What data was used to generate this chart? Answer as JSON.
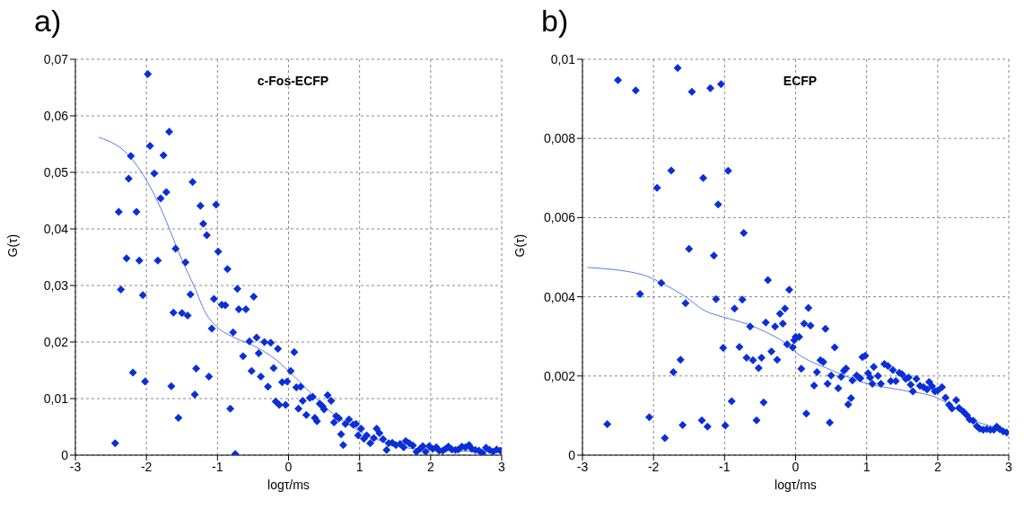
{
  "chart_data": [
    {
      "type": "scatter",
      "title": "a)",
      "annotations": [
        "c-Fos-ECFP"
      ],
      "xlabel": "logτ/ms",
      "ylabel": "G(τ)",
      "xlim": [
        -3,
        3
      ],
      "ylim": [
        0,
        0.07
      ],
      "xticks": [
        -3,
        -2,
        -1,
        0,
        1,
        2,
        3
      ],
      "yticks": [
        {
          "value": 0,
          "label": "0"
        },
        {
          "value": 0.01,
          "label": "0,01"
        },
        {
          "value": 0.02,
          "label": "0,02"
        },
        {
          "value": 0.03,
          "label": "0,03"
        },
        {
          "value": 0.04,
          "label": "0,04"
        },
        {
          "value": 0.05,
          "label": "0,05"
        },
        {
          "value": 0.06,
          "label": "0,06"
        },
        {
          "value": 0.07,
          "label": "0,07"
        }
      ],
      "grid": true,
      "series": [
        {
          "marker": "diamond",
          "color": "#0a2fd8",
          "x": [
            -2.44,
            -2.39,
            -2.36,
            -2.28,
            -2.25,
            -2.22,
            -2.19,
            -2.14,
            -2.1,
            -2.05,
            -2.02,
            -1.98,
            -1.95,
            -1.89,
            -1.84,
            -1.8,
            -1.76,
            -1.72,
            -1.68,
            -1.65,
            -1.62,
            -1.59,
            -1.55,
            -1.5,
            -1.45,
            -1.42,
            -1.38,
            -1.35,
            -1.32,
            -1.3,
            -1.24,
            -1.2,
            -1.15,
            -1.12,
            -1.08,
            -1.05,
            -1.02,
            -0.99,
            -0.94,
            -0.89,
            -0.86,
            -0.82,
            -0.78,
            -0.75,
            -0.72,
            -0.7,
            -0.64,
            -0.6,
            -0.55,
            -0.52,
            -0.49,
            -0.45,
            -0.42,
            -0.39,
            -0.34,
            -0.29,
            -0.25,
            -0.21,
            -0.18,
            -0.15,
            -0.13,
            -0.09,
            -0.04,
            -0.02,
            0.03,
            0.08,
            0.11,
            0.17,
            0.14,
            0.2,
            0.25,
            0.3,
            0.34,
            0.37,
            0.4,
            0.44,
            0.48,
            0.5,
            0.55,
            0.6,
            0.64,
            0.67,
            0.71,
            0.74,
            0.77,
            0.8,
            0.85,
            0.91,
            0.95,
            0.98,
            1.02,
            1.06,
            1.1,
            1.15,
            1.2,
            1.24,
            1.28,
            1.33,
            1.38,
            1.41,
            1.46,
            1.51,
            1.57,
            1.62,
            1.65,
            1.7,
            1.75,
            1.8,
            1.85,
            1.89,
            1.93,
            1.98,
            2.03,
            2.08,
            2.12,
            2.17,
            2.21,
            2.25,
            2.3,
            2.35,
            2.39,
            2.44,
            2.49,
            2.54,
            2.58,
            2.63,
            2.68,
            2.73,
            2.78,
            2.83,
            2.88,
            2.93,
            2.98
          ],
          "values": [
            0.0021,
            0.043,
            0.0293,
            0.0348,
            0.0489,
            0.0529,
            0.0146,
            0.043,
            0.0344,
            0.0283,
            0.013,
            0.0674,
            0.0547,
            0.0498,
            0.0344,
            0.0454,
            0.053,
            0.0465,
            0.0572,
            0.0122,
            0.0252,
            0.0365,
            0.0066,
            0.0251,
            0.0341,
            0.0247,
            0.0284,
            0.0483,
            0.0107,
            0.0153,
            0.0441,
            0.0409,
            0.0389,
            0.0139,
            0.0224,
            0.0276,
            0.0443,
            0.036,
            0.0266,
            0.0265,
            0.0329,
            0.0082,
            0.0217,
            0.0002,
            0.0294,
            0.0258,
            0.0175,
            0.0258,
            0.0201,
            0.0149,
            0.028,
            0.0208,
            0.018,
            0.0139,
            0.02,
            0.0121,
            0.0199,
            0.0154,
            0.0095,
            0.0188,
            0.0089,
            0.0129,
            0.0089,
            0.013,
            0.0149,
            0.0182,
            0.012,
            0.0121,
            0.0082,
            0.0096,
            0.0071,
            0.0101,
            0.0103,
            0.0066,
            0.006,
            0.0091,
            0.0086,
            0.0081,
            0.0106,
            0.0096,
            0.0058,
            0.0069,
            0.0065,
            0.0037,
            0.0018,
            0.0055,
            0.0063,
            0.0054,
            0.0055,
            0.0035,
            0.0047,
            0.0029,
            0.0035,
            0.0021,
            0.003,
            0.0047,
            0.0039,
            0.0028,
            0.0009,
            0.0021,
            0.0022,
            0.0018,
            0.002,
            0.0014,
            0.0025,
            0.0021,
            0.0017,
            0.0006,
            0.0011,
            0.0016,
            0.0006,
            0.0016,
            0.0011,
            0.0014,
            0.0008,
            0.0008,
            0.0011,
            0.0015,
            0.001,
            0.0009,
            0.001,
            0.0015,
            0.0014,
            0.0018,
            0.0011,
            0.0009,
            0.0008,
            0.0004,
            0.0013,
            0.0009,
            0.0006,
            0.001,
            0.0008
          ]
        },
        {
          "type": "line",
          "color": "#5b7be8",
          "x": [
            -2.67,
            -2.25,
            -2.0,
            -1.79,
            -1.67,
            -1.5,
            -1.33,
            -1.17,
            -1.0,
            -0.75,
            -0.5,
            -0.17,
            0.03,
            0.62,
            0.99,
            1.37,
            1.78,
            2.2,
            2.53,
            2.87,
            3.0
          ],
          "values": [
            0.0562,
            0.053,
            0.0486,
            0.0434,
            0.0398,
            0.0345,
            0.0299,
            0.0252,
            0.0226,
            0.0207,
            0.0194,
            0.0168,
            0.0145,
            0.0074,
            0.0043,
            0.0022,
            0.0011,
            0.0008,
            0.0007,
            0.0006,
            0.0006
          ]
        }
      ]
    },
    {
      "type": "scatter",
      "title": "b)",
      "annotations": [
        "ECFP"
      ],
      "xlabel": "logτ/ms",
      "ylabel": "G(τ)",
      "xlim": [
        -3,
        3
      ],
      "ylim": [
        0,
        0.01
      ],
      "xticks": [
        -3,
        -2,
        -1,
        0,
        1,
        2,
        3
      ],
      "yticks": [
        {
          "value": 0,
          "label": "0"
        },
        {
          "value": 0.002,
          "label": "0,002"
        },
        {
          "value": 0.004,
          "label": "0,004"
        },
        {
          "value": 0.006,
          "label": "0,006"
        },
        {
          "value": 0.008,
          "label": "0,008"
        },
        {
          "value": 0.01,
          "label": "0,01"
        }
      ],
      "grid": true,
      "series": [
        {
          "marker": "diamond",
          "color": "#0a2fd8",
          "x": [
            -2.65,
            -2.5,
            -2.25,
            -2.19,
            -2.06,
            -1.95,
            -1.89,
            -1.84,
            -1.75,
            -1.72,
            -1.66,
            -1.62,
            -1.59,
            -1.55,
            -1.5,
            -1.46,
            -1.32,
            -1.3,
            -1.24,
            -1.2,
            -1.15,
            -1.12,
            -1.09,
            -1.05,
            -1.02,
            -0.99,
            -0.95,
            -0.9,
            -0.86,
            -0.79,
            -0.75,
            -0.73,
            -0.69,
            -0.64,
            -0.6,
            -0.55,
            -0.52,
            -0.48,
            -0.45,
            -0.42,
            -0.39,
            -0.34,
            -0.29,
            -0.26,
            -0.22,
            -0.18,
            -0.15,
            -0.12,
            -0.09,
            -0.04,
            -0.02,
            0.0,
            0.05,
            0.08,
            0.12,
            0.15,
            0.18,
            0.21,
            0.26,
            0.3,
            0.35,
            0.39,
            0.42,
            0.45,
            0.48,
            0.5,
            0.55,
            0.6,
            0.64,
            0.68,
            0.71,
            0.74,
            0.78,
            0.8,
            0.86,
            0.91,
            0.94,
            0.98,
            1.02,
            1.05,
            1.08,
            1.1,
            1.16,
            1.2,
            1.25,
            1.3,
            1.34,
            1.37,
            1.41,
            1.46,
            1.5,
            1.55,
            1.59,
            1.62,
            1.65,
            1.7,
            1.75,
            1.8,
            1.85,
            1.88,
            1.92,
            1.96,
            2.0,
            2.06,
            2.11,
            2.16,
            2.2,
            2.26,
            2.3,
            2.36,
            2.41,
            2.45,
            2.5,
            2.55,
            2.59,
            2.64,
            2.69,
            2.74,
            2.79,
            2.83,
            2.87,
            2.92,
            2.97
          ],
          "values": [
            0.00078,
            0.00947,
            0.00921,
            0.00407,
            0.00096,
            0.00675,
            0.00435,
            0.00043,
            0.00719,
            0.0021,
            0.00978,
            0.00241,
            0.00076,
            0.00384,
            0.00521,
            0.00918,
            0.00088,
            0.007,
            0.00072,
            0.00927,
            0.00504,
            0.00394,
            0.00633,
            0.00937,
            0.00271,
            0.00075,
            0.00718,
            0.00136,
            0.0037,
            0.00273,
            0.00393,
            0.00561,
            0.00246,
            0.00325,
            0.0024,
            0.00088,
            0.0022,
            0.00246,
            0.00133,
            0.00335,
            0.00442,
            0.00262,
            0.00325,
            0.00241,
            0.00357,
            0.00332,
            0.0037,
            0.0028,
            0.00418,
            0.00272,
            0.0029,
            0.00299,
            0.00299,
            0.00218,
            0.00332,
            0.00105,
            0.00372,
            0.00327,
            0.00176,
            0.0021,
            0.0024,
            0.00235,
            0.00319,
            0.0018,
            0.00082,
            0.00201,
            0.00272,
            0.00169,
            0.00198,
            0.00213,
            0.00219,
            0.00128,
            0.00144,
            0.00189,
            0.00201,
            0.00194,
            0.00248,
            0.00251,
            0.00207,
            0.00196,
            0.0018,
            0.00223,
            0.002,
            0.0018,
            0.0023,
            0.00225,
            0.00187,
            0.00215,
            0.00187,
            0.00208,
            0.00204,
            0.00193,
            0.00196,
            0.00178,
            0.00161,
            0.00193,
            0.00175,
            0.00172,
            0.00166,
            0.00185,
            0.00174,
            0.00161,
            0.00163,
            0.00172,
            0.00145,
            0.00127,
            0.00118,
            0.00139,
            0.00119,
            0.0011,
            0.00101,
            0.0009,
            0.00087,
            0.00073,
            0.00067,
            0.00064,
            0.00066,
            0.00064,
            0.00064,
            0.00072,
            0.00066,
            0.0006,
            0.00057
          ]
        },
        {
          "type": "line",
          "color": "#5b7be8",
          "x": [
            -2.93,
            -2.18,
            -1.89,
            -1.56,
            -1.27,
            -1.02,
            -0.68,
            -0.43,
            -0.14,
            0.0,
            0.5,
            1.0,
            1.5,
            2.0,
            2.25,
            2.5,
            2.75,
            2.98
          ],
          "values": [
            0.00474,
            0.00457,
            0.00435,
            0.00401,
            0.00364,
            0.00349,
            0.00331,
            0.00312,
            0.00282,
            0.0026,
            0.00215,
            0.00181,
            0.00164,
            0.00144,
            0.00118,
            0.00088,
            0.00073,
            0.00057
          ]
        }
      ]
    }
  ]
}
